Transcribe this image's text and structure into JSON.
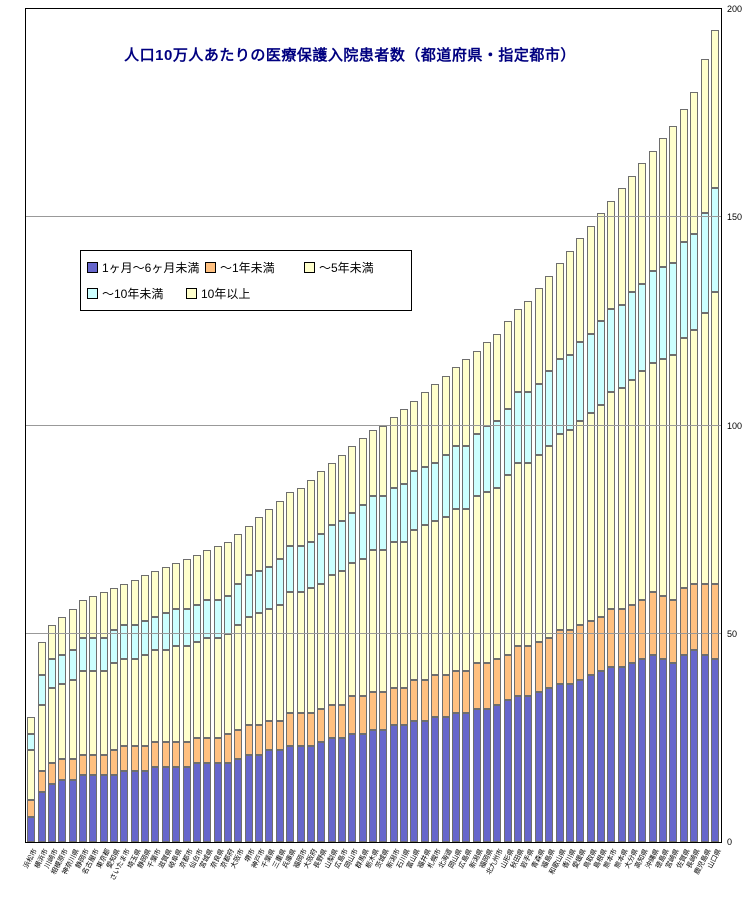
{
  "page": {
    "background": "#FFFFFF",
    "plot_border_color": "#000000",
    "gridline_color": "#999999"
  },
  "chart_data": {
    "type": "bar",
    "stacked": true,
    "title": "人口10万人あたりの医療保護入院患者数（都道府県・指定都市）",
    "title_color": "#000080",
    "xlabel": "",
    "ylabel": "",
    "ylim": [
      0,
      200
    ],
    "yticks": [
      0,
      50,
      100,
      150,
      200
    ],
    "yticks_position": "right",
    "grid": "horizontal",
    "legend_position": "inside-upper-left",
    "categories": [
      "浜松市",
      "横浜市",
      "川崎市",
      "相模原市",
      "神奈川県",
      "静岡市",
      "名古屋市",
      "東京都",
      "愛知県",
      "さいたま市",
      "埼玉県",
      "静岡県",
      "千葉市",
      "滋賀県",
      "岐阜県",
      "京都市",
      "仙台市",
      "宮城県",
      "奈良県",
      "京都府",
      "大阪市",
      "堺市",
      "神戸市",
      "千葉県",
      "三重県",
      "兵庫県",
      "福岡市",
      "大阪府",
      "長野県",
      "山梨県",
      "広島市",
      "岡山市",
      "群馬県",
      "栃木県",
      "茨城県",
      "新潟市",
      "石川県",
      "富山県",
      "福井県",
      "札幌市",
      "北海道",
      "岡山県",
      "広島県",
      "新潟県",
      "福岡県",
      "北九州市",
      "山形県",
      "秋田県",
      "岩手県",
      "青森県",
      "福島県",
      "和歌山県",
      "香川県",
      "愛媛県",
      "鳥取県",
      "島根県",
      "熊本市",
      "熊本県",
      "大分県",
      "高知県",
      "沖縄県",
      "徳島県",
      "宮崎県",
      "佐賀県",
      "長崎県",
      "鹿児島県",
      "山口県"
    ],
    "series": [
      {
        "name": "1ヶ月～6ヶ月未満",
        "color": "#6666CC",
        "values": [
          6,
          12,
          14,
          15,
          15,
          16,
          16,
          16,
          16,
          17,
          17,
          17,
          18,
          18,
          18,
          18,
          19,
          19,
          19,
          19,
          20,
          21,
          21,
          22,
          22,
          23,
          23,
          23,
          24,
          25,
          25,
          26,
          26,
          27,
          27,
          28,
          28,
          29,
          29,
          30,
          30,
          31,
          31,
          32,
          32,
          33,
          34,
          35,
          35,
          36,
          37,
          38,
          38,
          39,
          40,
          41,
          42,
          42,
          43,
          44,
          45,
          44,
          43,
          45,
          46,
          45,
          44
        ]
      },
      {
        "name": "～1年未満",
        "color": "#FFC080",
        "values": [
          4,
          5,
          5,
          5,
          5,
          5,
          5,
          5,
          6,
          6,
          6,
          6,
          6,
          6,
          6,
          6,
          6,
          6,
          6,
          7,
          7,
          7,
          7,
          7,
          7,
          8,
          8,
          8,
          8,
          8,
          8,
          9,
          9,
          9,
          9,
          9,
          9,
          10,
          10,
          10,
          10,
          10,
          10,
          11,
          11,
          11,
          11,
          12,
          12,
          12,
          12,
          13,
          13,
          13,
          13,
          13,
          14,
          14,
          14,
          14,
          15,
          15,
          15,
          16,
          16,
          17,
          18
        ]
      },
      {
        "name": "～5年未満",
        "color": "#FFFFCC",
        "values": [
          12,
          16,
          18,
          18,
          19,
          20,
          20,
          20,
          21,
          21,
          21,
          22,
          22,
          22,
          23,
          23,
          23,
          24,
          24,
          24,
          25,
          26,
          27,
          27,
          28,
          29,
          29,
          30,
          30,
          31,
          32,
          32,
          33,
          34,
          34,
          35,
          35,
          36,
          37,
          37,
          38,
          39,
          39,
          40,
          41,
          41,
          43,
          44,
          44,
          45,
          46,
          47,
          48,
          49,
          50,
          51,
          52,
          53,
          54,
          55,
          55,
          57,
          59,
          60,
          61,
          65,
          70
        ]
      },
      {
        "name": "～10年未満",
        "color": "#CCFFFF",
        "values": [
          4,
          7,
          7,
          7,
          7,
          8,
          8,
          8,
          8,
          8,
          8,
          8,
          8,
          9,
          9,
          9,
          9,
          9,
          9,
          9,
          10,
          10,
          10,
          10,
          11,
          11,
          11,
          11,
          12,
          12,
          12,
          12,
          13,
          13,
          13,
          13,
          14,
          14,
          14,
          14,
          15,
          15,
          15,
          15,
          16,
          16,
          16,
          17,
          17,
          17,
          18,
          18,
          18,
          19,
          19,
          20,
          20,
          20,
          21,
          21,
          22,
          22,
          22,
          23,
          23,
          24,
          25
        ]
      },
      {
        "name": "10年以上",
        "color": "#FFFFCC",
        "values": [
          4,
          8,
          8,
          9,
          10,
          9,
          10,
          11,
          10,
          10,
          11,
          11,
          11,
          11,
          11,
          12,
          12,
          12,
          13,
          13,
          12,
          12,
          13,
          14,
          14,
          13,
          14,
          15,
          15,
          15,
          16,
          16,
          16,
          16,
          17,
          17,
          18,
          17,
          18,
          19,
          19,
          19,
          21,
          20,
          20,
          21,
          21,
          20,
          22,
          23,
          23,
          23,
          25,
          25,
          26,
          26,
          26,
          28,
          28,
          29,
          29,
          31,
          33,
          32,
          34,
          37,
          38
        ]
      }
    ]
  }
}
